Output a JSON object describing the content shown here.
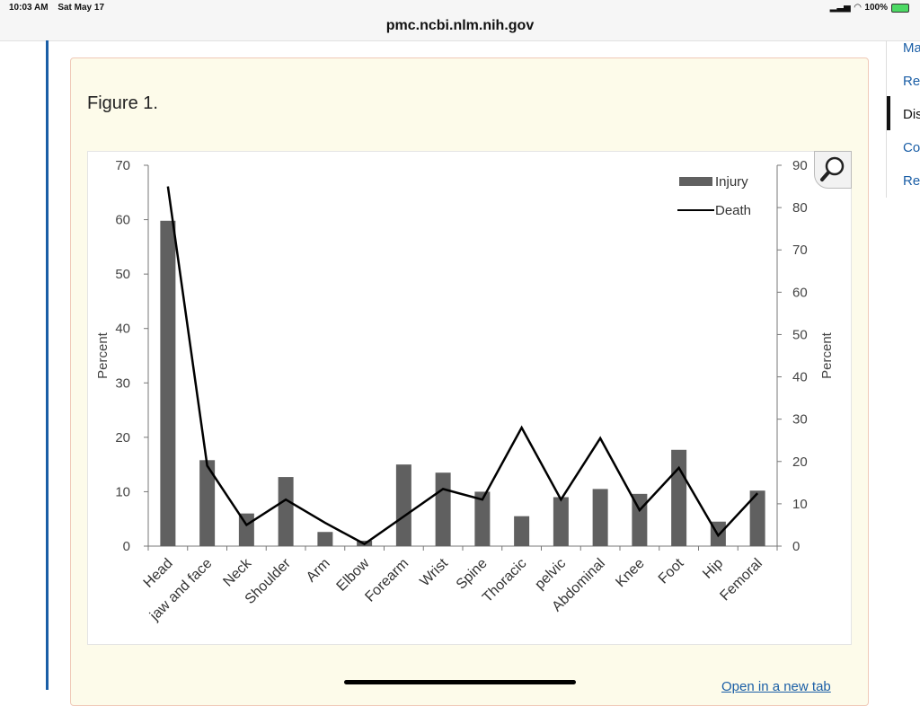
{
  "status": {
    "time": "10:03 AM",
    "date": "Sat May 17",
    "battery": "100%"
  },
  "browser": {
    "url": "pmc.ncbi.nlm.nih.gov"
  },
  "figure": {
    "title": "Figure 1.",
    "open_link": "Open in a new tab"
  },
  "nav": {
    "items": [
      "Ma",
      "Res",
      "Dis",
      "Co",
      "Ref"
    ],
    "active": 2
  },
  "chart_data": {
    "type": "bar",
    "title": "",
    "categories": [
      "Head",
      "jaw and face",
      "Neck",
      "Shoulder",
      "Arm",
      "Elbow",
      "Forearm",
      "Wrist",
      "Spine",
      "Thoracic",
      "pelvic",
      "Abdominal",
      "Knee",
      "Foot",
      "Hip",
      "Femoral"
    ],
    "series": [
      {
        "name": "Injury",
        "type": "bar",
        "axis": "left",
        "color": "#606060",
        "values": [
          59.8,
          15.8,
          6.0,
          12.7,
          2.6,
          1.0,
          15.0,
          13.5,
          10.0,
          5.5,
          9.0,
          10.5,
          9.6,
          17.7,
          4.5,
          10.2
        ]
      },
      {
        "name": "Death",
        "type": "line",
        "axis": "right",
        "color": "#000000",
        "values": [
          85,
          19,
          5,
          11,
          5.5,
          0.5,
          7,
          13.5,
          11,
          28,
          11,
          25.5,
          8.5,
          18.5,
          2.5,
          12.5
        ]
      }
    ],
    "xlabel": "",
    "ylabel": "Percent",
    "y2label": "Percent",
    "ylim": [
      0,
      70
    ],
    "y2lim": [
      0,
      90
    ],
    "yticks": [
      0,
      10,
      20,
      30,
      40,
      50,
      60,
      70
    ],
    "y2ticks": [
      0,
      10,
      20,
      30,
      40,
      50,
      60,
      70,
      80,
      90
    ],
    "legend": "top-right",
    "grid": false
  }
}
